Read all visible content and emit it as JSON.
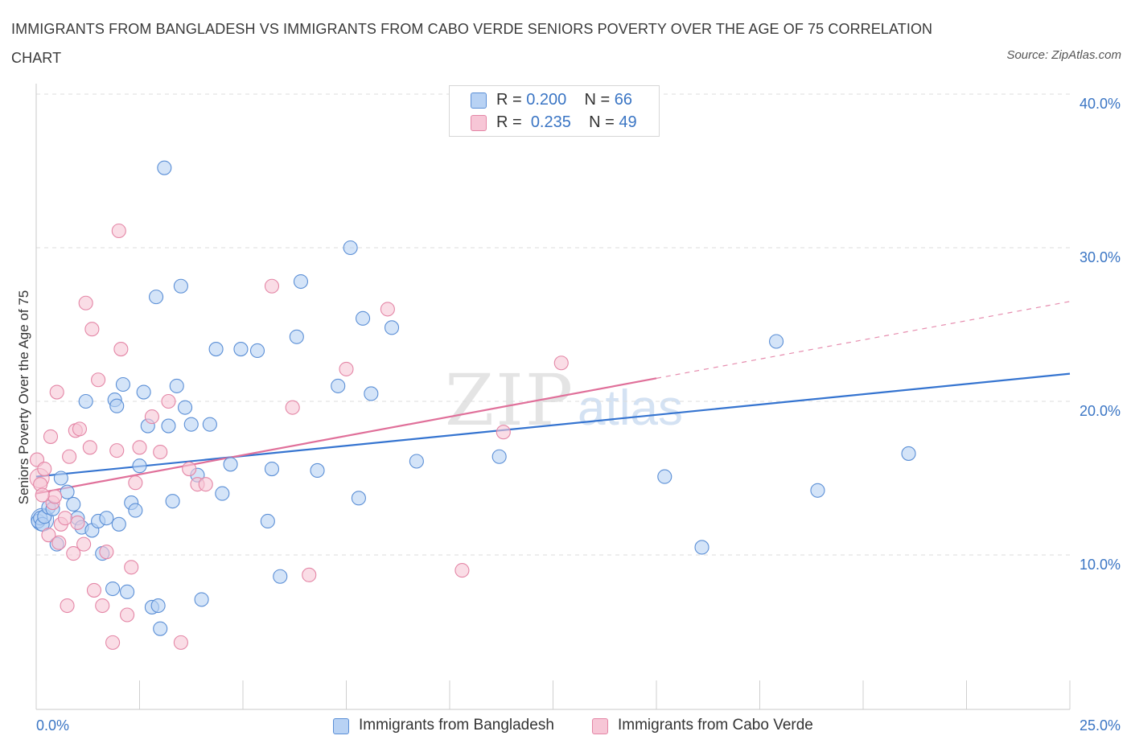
{
  "title": "IMMIGRANTS FROM BANGLADESH VS IMMIGRANTS FROM CABO VERDE SENIORS POVERTY OVER THE AGE OF 75 CORRELATION CHART",
  "source": "Source: ZipAtlas.com",
  "legend_top": {
    "rows": [
      {
        "r_label": "R =",
        "r_value": "0.200",
        "n_label": "N =",
        "n_value": "66"
      },
      {
        "r_label": "R =",
        "r_value": "0.235",
        "n_label": "N =",
        "n_value": "49"
      }
    ]
  },
  "watermark": {
    "zip": "ZIP",
    "atlas": "atlas"
  },
  "colors": {
    "blue_fill": "#b8d2f4",
    "blue_stroke": "#5b8fd6",
    "blue_line": "#3574d0",
    "pink_fill": "#f7c6d6",
    "pink_stroke": "#e486a6",
    "pink_line": "#e0709a",
    "axis_label": "#3a75c4",
    "grid": "#dddddd"
  },
  "chart_data": {
    "type": "scatter",
    "title": "IMMIGRANTS FROM BANGLADESH VS IMMIGRANTS FROM CABO VERDE SENIORS POVERTY OVER THE AGE OF 75 CORRELATION CHART",
    "xlabel": "",
    "ylabel": "Seniors Poverty Over the Age of 75",
    "xlim": [
      0,
      25
    ],
    "ylim": [
      0,
      40
    ],
    "x_tick_labels": [
      "0.0%",
      "25.0%"
    ],
    "y_ticks": [
      10,
      20,
      30,
      40
    ],
    "y_tick_labels": [
      "10.0%",
      "20.0%",
      "30.0%",
      "40.0%"
    ],
    "grid": true,
    "legend_position": "bottom",
    "series": [
      {
        "name": "Immigrants from Bangladesh",
        "color": "#5b8fd6",
        "r": 0.2,
        "n": 66,
        "trend": {
          "x": [
            0,
            25
          ],
          "y": [
            15.1,
            21.8
          ],
          "style": "solid"
        },
        "points": [
          [
            0.05,
            12.2
          ],
          [
            0.1,
            12.4
          ],
          [
            0.15,
            12.0
          ],
          [
            0.2,
            12.5
          ],
          [
            0.3,
            13.1
          ],
          [
            0.4,
            13.0
          ],
          [
            0.5,
            10.7
          ],
          [
            0.6,
            15.0
          ],
          [
            0.75,
            14.1
          ],
          [
            0.9,
            13.3
          ],
          [
            1.0,
            12.4
          ],
          [
            1.1,
            11.8
          ],
          [
            1.2,
            20.0
          ],
          [
            1.35,
            11.6
          ],
          [
            1.5,
            12.2
          ],
          [
            1.6,
            10.1
          ],
          [
            1.7,
            12.4
          ],
          [
            1.85,
            7.8
          ],
          [
            1.9,
            20.1
          ],
          [
            1.95,
            19.7
          ],
          [
            2.0,
            12.0
          ],
          [
            2.1,
            21.1
          ],
          [
            2.2,
            7.6
          ],
          [
            2.3,
            13.4
          ],
          [
            2.4,
            12.9
          ],
          [
            2.5,
            15.8
          ],
          [
            2.6,
            20.6
          ],
          [
            2.7,
            18.4
          ],
          [
            2.8,
            6.6
          ],
          [
            2.9,
            26.8
          ],
          [
            2.95,
            6.7
          ],
          [
            3.0,
            5.2
          ],
          [
            3.1,
            35.2
          ],
          [
            3.2,
            18.4
          ],
          [
            3.3,
            13.5
          ],
          [
            3.4,
            21.0
          ],
          [
            3.5,
            27.5
          ],
          [
            3.6,
            19.6
          ],
          [
            3.75,
            18.5
          ],
          [
            3.9,
            15.2
          ],
          [
            4.0,
            7.1
          ],
          [
            4.2,
            18.5
          ],
          [
            4.35,
            23.4
          ],
          [
            4.5,
            14.0
          ],
          [
            4.7,
            15.9
          ],
          [
            4.95,
            23.4
          ],
          [
            5.35,
            23.3
          ],
          [
            5.6,
            12.2
          ],
          [
            5.7,
            15.6
          ],
          [
            5.9,
            8.6
          ],
          [
            6.3,
            24.2
          ],
          [
            6.4,
            27.8
          ],
          [
            6.8,
            15.5
          ],
          [
            7.3,
            21.0
          ],
          [
            7.6,
            30.0
          ],
          [
            7.8,
            13.7
          ],
          [
            7.9,
            25.4
          ],
          [
            8.1,
            20.5
          ],
          [
            8.6,
            24.8
          ],
          [
            9.2,
            16.1
          ],
          [
            11.2,
            16.4
          ],
          [
            15.2,
            15.1
          ],
          [
            16.1,
            10.5
          ],
          [
            17.9,
            23.9
          ],
          [
            18.9,
            14.2
          ],
          [
            21.1,
            16.6
          ]
        ]
      },
      {
        "name": "Immigrants from Cabo Verde",
        "color": "#e486a6",
        "r": 0.235,
        "n": 49,
        "trend": {
          "x": [
            0,
            15.0
          ],
          "y": [
            14.0,
            21.5
          ],
          "style": "solid",
          "extend_to": [
            25,
            26.5
          ],
          "extend_style": "dashed"
        },
        "points": [
          [
            0.02,
            16.2
          ],
          [
            0.1,
            14.6
          ],
          [
            0.2,
            15.6
          ],
          [
            0.3,
            11.3
          ],
          [
            0.35,
            17.7
          ],
          [
            0.4,
            13.4
          ],
          [
            0.45,
            13.8
          ],
          [
            0.5,
            20.6
          ],
          [
            0.55,
            10.8
          ],
          [
            0.6,
            12.0
          ],
          [
            0.7,
            12.4
          ],
          [
            0.75,
            6.7
          ],
          [
            0.8,
            16.4
          ],
          [
            0.9,
            10.1
          ],
          [
            0.95,
            18.1
          ],
          [
            1.0,
            12.1
          ],
          [
            1.05,
            18.2
          ],
          [
            1.15,
            10.7
          ],
          [
            1.2,
            26.4
          ],
          [
            1.3,
            17.0
          ],
          [
            1.35,
            24.7
          ],
          [
            1.4,
            7.7
          ],
          [
            1.5,
            21.4
          ],
          [
            1.6,
            6.7
          ],
          [
            1.7,
            10.2
          ],
          [
            1.85,
            4.3
          ],
          [
            1.95,
            16.8
          ],
          [
            2.0,
            31.1
          ],
          [
            2.05,
            23.4
          ],
          [
            2.2,
            6.1
          ],
          [
            2.3,
            9.2
          ],
          [
            2.4,
            14.7
          ],
          [
            2.5,
            17.0
          ],
          [
            2.8,
            19.0
          ],
          [
            3.0,
            16.7
          ],
          [
            3.2,
            20.0
          ],
          [
            3.5,
            4.3
          ],
          [
            3.7,
            15.6
          ],
          [
            3.9,
            14.6
          ],
          [
            4.1,
            14.6
          ],
          [
            5.7,
            27.5
          ],
          [
            6.2,
            19.6
          ],
          [
            6.6,
            8.7
          ],
          [
            7.5,
            22.1
          ],
          [
            8.5,
            26.0
          ],
          [
            10.3,
            9.0
          ],
          [
            11.3,
            18.0
          ],
          [
            12.7,
            22.5
          ],
          [
            0.15,
            13.9
          ]
        ]
      }
    ]
  }
}
